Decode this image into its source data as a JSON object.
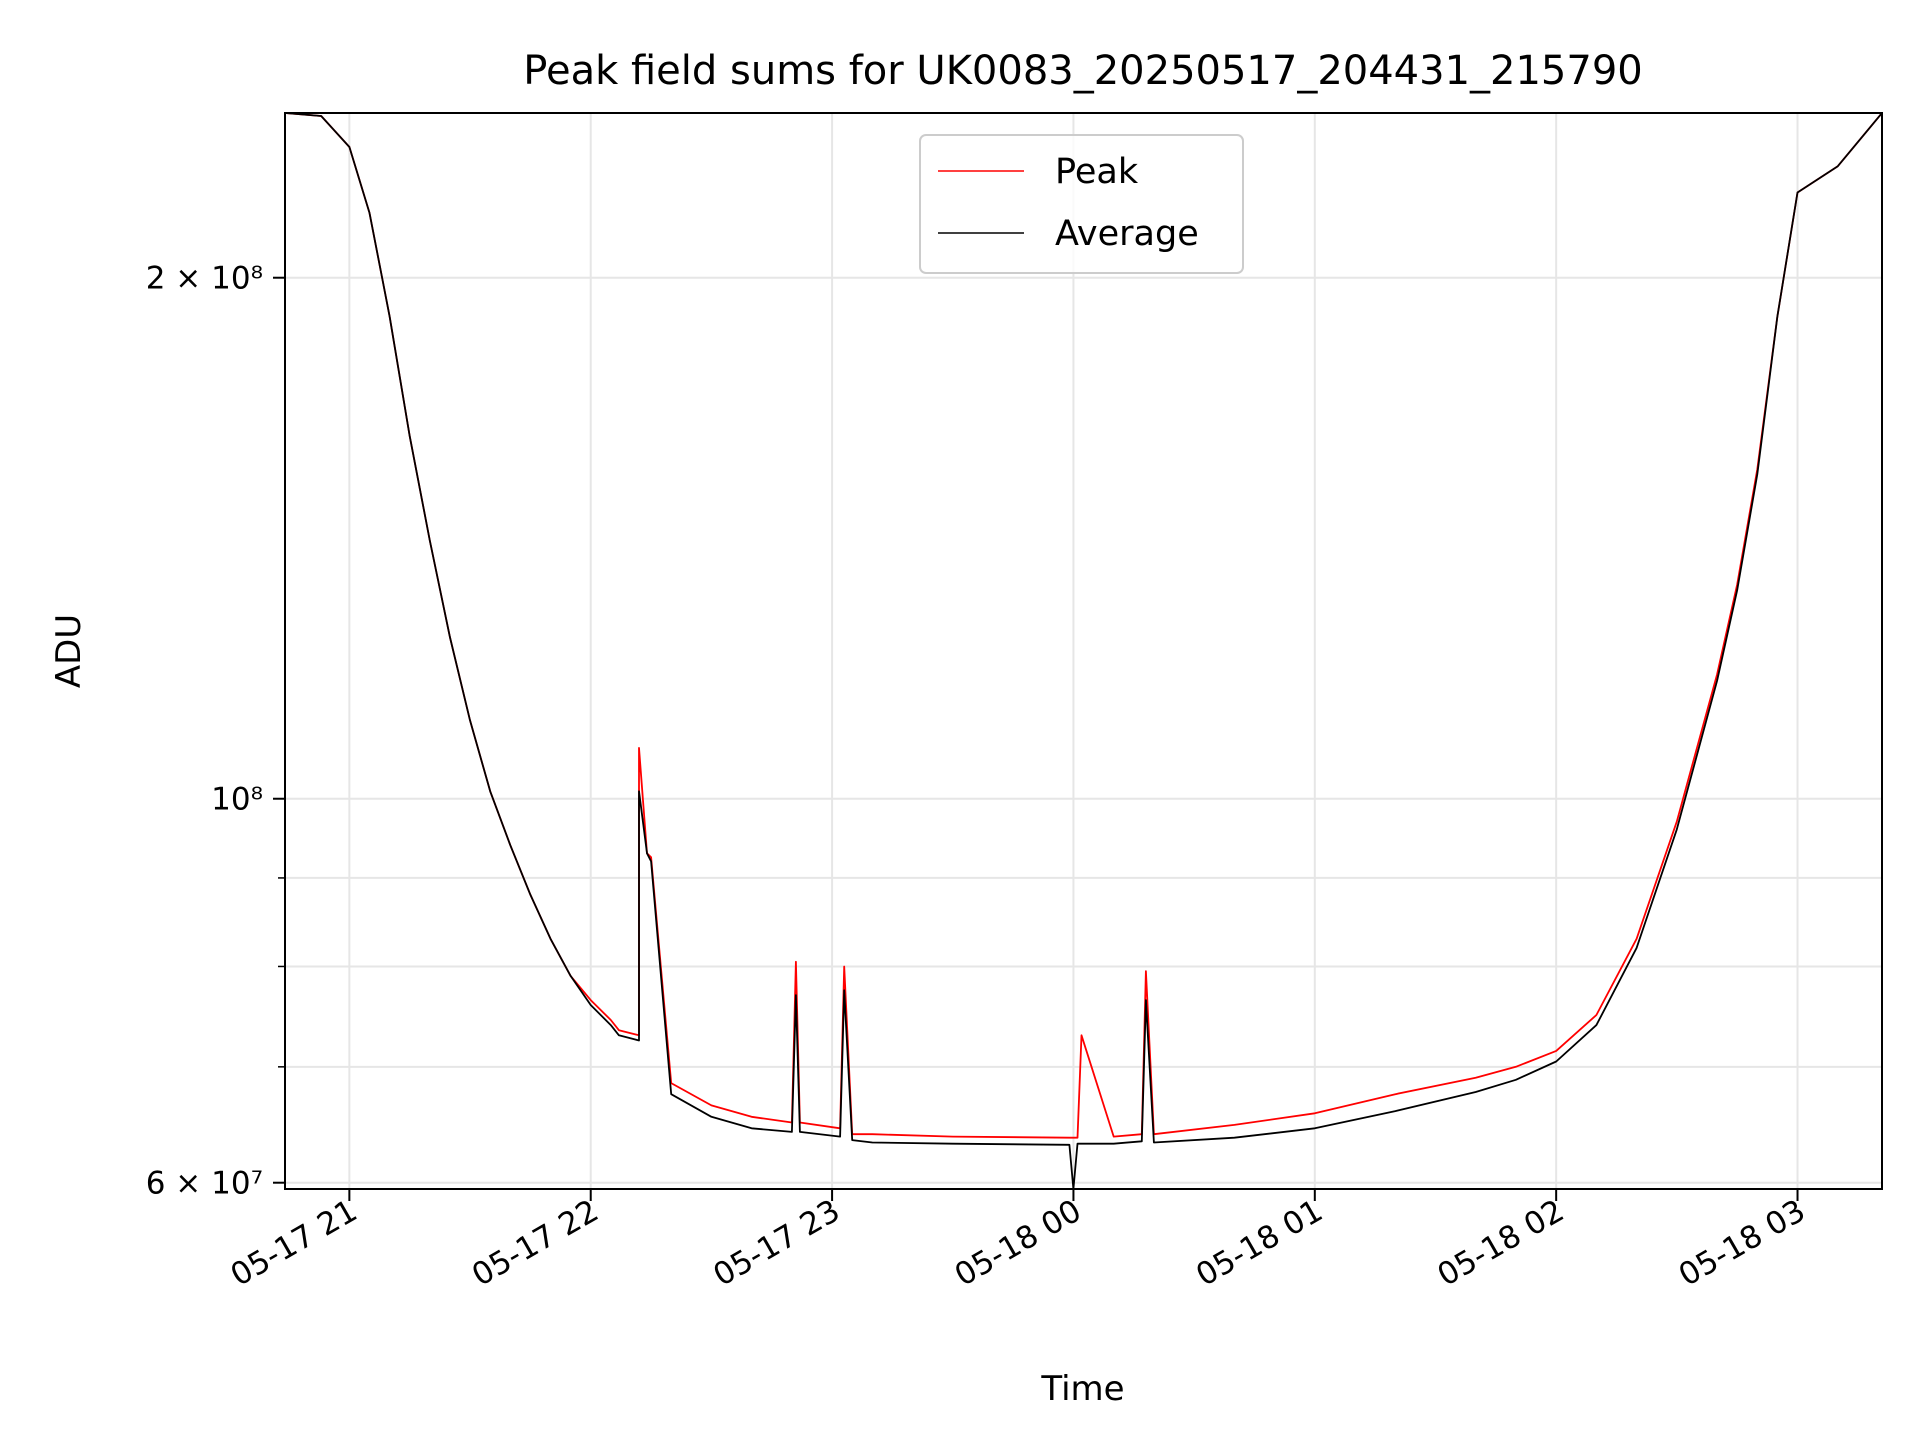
{
  "chart_data": {
    "type": "line",
    "title": "Peak field sums for UK0083_20250517_204431_215790",
    "xlabel": "Time",
    "ylabel": "ADU",
    "yscale": "log",
    "ylim": [
      59500000,
      249000000
    ],
    "xlim": [
      "2025-05-17 20:44",
      "2025-05-18 03:21"
    ],
    "x_ticks": [
      {
        "x": "2025-05-17 21:00",
        "label": "05-17 21"
      },
      {
        "x": "2025-05-17 22:00",
        "label": "05-17 22"
      },
      {
        "x": "2025-05-17 23:00",
        "label": "05-17 23"
      },
      {
        "x": "2025-05-18 00:00",
        "label": "05-18 00"
      },
      {
        "x": "2025-05-18 01:00",
        "label": "05-18 01"
      },
      {
        "x": "2025-05-18 02:00",
        "label": "05-18 02"
      },
      {
        "x": "2025-05-18 03:00",
        "label": "05-18 03"
      }
    ],
    "y_ticks_major": [
      {
        "y": 60000000,
        "label": "6 × 10⁷"
      },
      {
        "y": 100000000,
        "label": "10⁸"
      },
      {
        "y": 200000000,
        "label": "2 × 10⁸"
      }
    ],
    "y_ticks_minor": [
      70000000,
      80000000,
      90000000
    ],
    "grid": true,
    "legend_position": "top-center",
    "series": [
      {
        "name": "Peak",
        "color": "#ff0000",
        "x": [
          "2025-05-17 20:44",
          "2025-05-17 20:53",
          "2025-05-17 21:00",
          "2025-05-17 21:05",
          "2025-05-17 21:10",
          "2025-05-17 21:15",
          "2025-05-17 21:20",
          "2025-05-17 21:25",
          "2025-05-17 21:30",
          "2025-05-17 21:35",
          "2025-05-17 21:40",
          "2025-05-17 21:45",
          "2025-05-17 21:50",
          "2025-05-17 21:55",
          "2025-05-17 22:00",
          "2025-05-17 22:05",
          "2025-05-17 22:07",
          "2025-05-17 22:12",
          "2025-05-17 22:12",
          "2025-05-17 22:14",
          "2025-05-17 22:15",
          "2025-05-17 22:20",
          "2025-05-17 22:30",
          "2025-05-17 22:40",
          "2025-05-17 22:50",
          "2025-05-17 22:51",
          "2025-05-17 22:52",
          "2025-05-17 23:02",
          "2025-05-17 23:03",
          "2025-05-17 23:05",
          "2025-05-17 23:10",
          "2025-05-17 23:30",
          "2025-05-17 23:59",
          "2025-05-18 00:01",
          "2025-05-18 00:02",
          "2025-05-18 00:10",
          "2025-05-18 00:17",
          "2025-05-18 00:18",
          "2025-05-18 00:20",
          "2025-05-18 00:40",
          "2025-05-18 01:00",
          "2025-05-18 01:20",
          "2025-05-18 01:40",
          "2025-05-18 01:50",
          "2025-05-18 02:00",
          "2025-05-18 02:10",
          "2025-05-18 02:20",
          "2025-05-18 02:30",
          "2025-05-18 02:40",
          "2025-05-18 02:45",
          "2025-05-18 02:50",
          "2025-05-18 02:55",
          "2025-05-18 03:00",
          "2025-05-18 03:10",
          "2025-05-18 03:21"
        ],
        "y": [
          249000000,
          248000000,
          238000000,
          218000000,
          190000000,
          162000000,
          141000000,
          124000000,
          111000000,
          101000000,
          94000000,
          88000000,
          83000000,
          79000000,
          76500000,
          74500000,
          73500000,
          73000000,
          107000000,
          93000000,
          92500000,
          68500000,
          66500000,
          65500000,
          65000000,
          80500000,
          65000000,
          64500000,
          80000000,
          64000000,
          64000000,
          63800000,
          63700000,
          63700000,
          73000000,
          63800000,
          64000000,
          79500000,
          64000000,
          64800000,
          65800000,
          67500000,
          69000000,
          70000000,
          71500000,
          75000000,
          83000000,
          97000000,
          118000000,
          133000000,
          155000000,
          190000000,
          224000000,
          232000000,
          249000000
        ]
      },
      {
        "name": "Average",
        "color": "#000000",
        "x": [
          "2025-05-17 20:44",
          "2025-05-17 20:53",
          "2025-05-17 21:00",
          "2025-05-17 21:05",
          "2025-05-17 21:10",
          "2025-05-17 21:15",
          "2025-05-17 21:20",
          "2025-05-17 21:25",
          "2025-05-17 21:30",
          "2025-05-17 21:35",
          "2025-05-17 21:40",
          "2025-05-17 21:45",
          "2025-05-17 21:50",
          "2025-05-17 21:55",
          "2025-05-17 22:00",
          "2025-05-17 22:05",
          "2025-05-17 22:07",
          "2025-05-17 22:12",
          "2025-05-17 22:12",
          "2025-05-17 22:14",
          "2025-05-17 22:15",
          "2025-05-17 22:20",
          "2025-05-17 22:30",
          "2025-05-17 22:40",
          "2025-05-17 22:50",
          "2025-05-17 22:51",
          "2025-05-17 22:52",
          "2025-05-17 23:02",
          "2025-05-17 23:03",
          "2025-05-17 23:05",
          "2025-05-17 23:10",
          "2025-05-17 23:30",
          "2025-05-17 23:59",
          "2025-05-18 00:00",
          "2025-05-18 00:01",
          "2025-05-18 00:10",
          "2025-05-18 00:17",
          "2025-05-18 00:18",
          "2025-05-18 00:20",
          "2025-05-18 00:40",
          "2025-05-18 01:00",
          "2025-05-18 01:20",
          "2025-05-18 01:40",
          "2025-05-18 01:50",
          "2025-05-18 02:00",
          "2025-05-18 02:10",
          "2025-05-18 02:20",
          "2025-05-18 02:30",
          "2025-05-18 02:40",
          "2025-05-18 02:45",
          "2025-05-18 02:50",
          "2025-05-18 02:55",
          "2025-05-18 03:00",
          "2025-05-18 03:10",
          "2025-05-18 03:21"
        ],
        "y": [
          249000000,
          248000000,
          238000000,
          218000000,
          190000000,
          162000000,
          141000000,
          124000000,
          111000000,
          101000000,
          94000000,
          88000000,
          83000000,
          79000000,
          76000000,
          74000000,
          73000000,
          72500000,
          101000000,
          93000000,
          92000000,
          67500000,
          65500000,
          64500000,
          64200000,
          77000000,
          64200000,
          63800000,
          77500000,
          63500000,
          63300000,
          63200000,
          63100000,
          59500000,
          63200000,
          63200000,
          63400000,
          76500000,
          63300000,
          63700000,
          64500000,
          66000000,
          67700000,
          68800000,
          70500000,
          74000000,
          82000000,
          96000000,
          117000000,
          132000000,
          154000000,
          190000000,
          224000000,
          232000000,
          249000000
        ]
      }
    ]
  }
}
